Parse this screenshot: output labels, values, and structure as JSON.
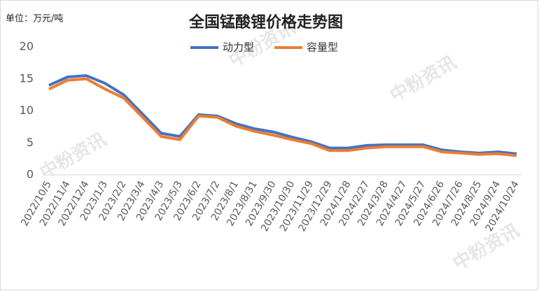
{
  "chart_data": {
    "type": "line",
    "title": "全国锰酸锂价格走势图",
    "unit": "单位：万元/吨",
    "watermark": "中粉资讯",
    "categories": [
      "2022/10/5",
      "2022/11/4",
      "2022/12/4",
      "2023/1/3",
      "2023/2/2",
      "2023/3/4",
      "2023/4/3",
      "2023/5/3",
      "2023/6/2",
      "2023/7/2",
      "2023/8/1",
      "2023/8/31",
      "2023/9/30",
      "2023/10/30",
      "2023/11/29",
      "2023/12/29",
      "2024/1/28",
      "2024/2/27",
      "2024/3/28",
      "2024/4/27",
      "2024/5/27",
      "2024/6/26",
      "2024/7/26",
      "2024/8/25",
      "2024/9/24",
      "2024/10/24"
    ],
    "series": [
      {
        "name": "动力型",
        "color": "#4472c4",
        "values": [
          14.0,
          15.3,
          15.5,
          14.3,
          12.5,
          9.5,
          6.5,
          6.0,
          9.4,
          9.2,
          8.0,
          7.2,
          6.7,
          5.9,
          5.2,
          4.2,
          4.2,
          4.6,
          4.7,
          4.7,
          4.7,
          3.9,
          3.6,
          3.4,
          3.6,
          3.3
        ]
      },
      {
        "name": "容量型",
        "color": "#ed7d31",
        "values": [
          13.4,
          14.8,
          15.0,
          13.4,
          12.0,
          9.0,
          6.0,
          5.5,
          9.2,
          9.0,
          7.6,
          6.8,
          6.2,
          5.5,
          4.9,
          3.8,
          3.8,
          4.2,
          4.4,
          4.4,
          4.4,
          3.6,
          3.4,
          3.2,
          3.3,
          3.0
        ]
      }
    ],
    "ylim": [
      0,
      20
    ],
    "yticks": [
      0,
      5,
      10,
      15,
      20
    ],
    "grid": false,
    "legend": "top"
  }
}
